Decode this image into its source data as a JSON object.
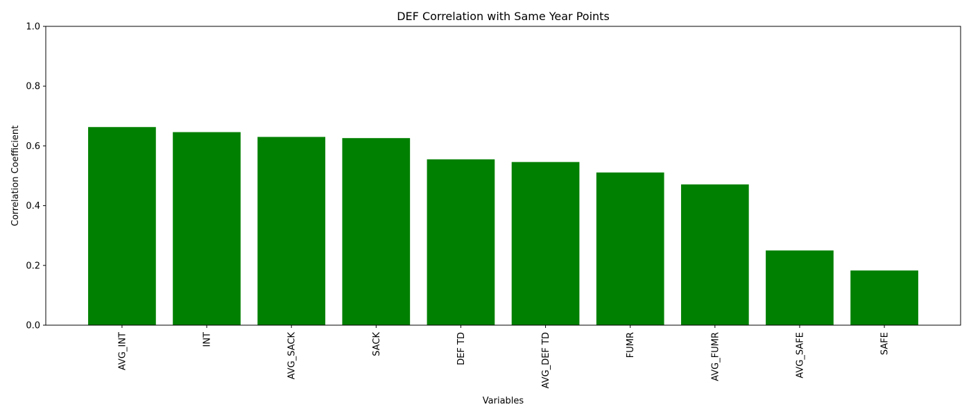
{
  "chart_data": {
    "type": "bar",
    "title": "DEF Correlation with Same Year Points",
    "xlabel": "Variables",
    "ylabel": "Correlation Coefficient",
    "categories": [
      "AVG_INT",
      "INT",
      "AVG_SACK",
      "SACK",
      "DEF TD",
      "AVG_DEF TD",
      "FUMR",
      "AVG_FUMR",
      "AVG_SAFE",
      "SAFE"
    ],
    "values": [
      0.663,
      0.646,
      0.63,
      0.626,
      0.555,
      0.546,
      0.511,
      0.471,
      0.25,
      0.183
    ],
    "ylim": [
      0,
      1
    ],
    "yticks": [
      "0.0",
      "0.2",
      "0.4",
      "0.6",
      "0.8",
      "1.0"
    ],
    "bar_color": "#008000",
    "grid": false,
    "xtick_rotation": "vertical"
  }
}
